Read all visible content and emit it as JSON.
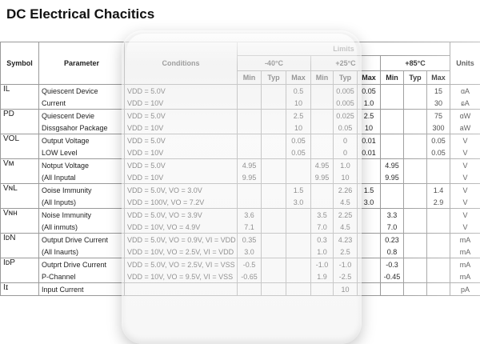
{
  "title": "DC Electrical Chacitics",
  "header": {
    "symbol": "Symbol",
    "parameter": "Parameter",
    "conditions": "Conditions",
    "limits": "Limits",
    "units": "Units",
    "temps": [
      "-40°C",
      "+25°C",
      "+85°C"
    ],
    "min": "Min",
    "typ": "Typ",
    "max": "Max"
  },
  "rows": [
    {
      "symbol": "IL",
      "lines": [
        {
          "param": "Quiescent Device",
          "cond": "VDD = 5.0V",
          "v": [
            "",
            "",
            "0.5",
            "",
            "0.005",
            "0.05",
            "",
            "",
            "15"
          ],
          "unit": "ɑA"
        },
        {
          "param": "Current",
          "cond": "VDD = 10V",
          "v": [
            "",
            "",
            "10",
            "",
            "0.005",
            "1.0",
            "",
            "",
            "30"
          ],
          "unit": "ɕA"
        }
      ]
    },
    {
      "symbol": "PD",
      "lines": [
        {
          "param": "Quiescent Devie",
          "cond": "VDD = 5.0V",
          "v": [
            "",
            "",
            "2.5",
            "",
            "0.025",
            "2.5",
            "",
            "",
            "75"
          ],
          "unit": "ɑW"
        },
        {
          "param": "Dissgsahor Package",
          "cond": "VDD = 10V",
          "v": [
            "",
            "",
            "10",
            "",
            "0.05",
            "10",
            "",
            "",
            "300"
          ],
          "unit": "aW"
        }
      ]
    },
    {
      "symbol": "VOL",
      "lines": [
        {
          "param": "Output Voltage",
          "cond": "VDD = 5.0V",
          "v": [
            "",
            "",
            "0.05",
            "",
            "0",
            "0.01",
            "",
            "",
            "0.05"
          ],
          "unit": "V"
        },
        {
          "param": "LOW Level",
          "cond": "VDD = 10V",
          "v": [
            "",
            "",
            "0.05",
            "",
            "0",
            "0.01",
            "",
            "",
            "0.05"
          ],
          "unit": "V"
        }
      ]
    },
    {
      "symbol": "Vᴍ",
      "lines": [
        {
          "param": "Notput Voltage",
          "cond": "VDD = 5.0V",
          "v": [
            "4.95",
            "",
            "",
            "4.95",
            "1.0",
            "",
            "4.95",
            "",
            ""
          ],
          "unit": "V"
        },
        {
          "param": "(All Inputal",
          "cond": "VDD = 10V",
          "v": [
            "9.95",
            "",
            "",
            "9.95",
            "10",
            "",
            "9.95",
            "",
            ""
          ],
          "unit": "V"
        }
      ]
    },
    {
      "symbol": "VɴL",
      "lines": [
        {
          "param": "Ooise Immunity",
          "cond": "VDD = 5.0V, VO = 3.0V",
          "v": [
            "",
            "",
            "1.5",
            "",
            "2.26",
            "1.5",
            "",
            "",
            "1.4"
          ],
          "unit": "V"
        },
        {
          "param": "(All Inputs)",
          "cond": "VDD = 100V, VO = 7.2V",
          "v": [
            "",
            "",
            "3.0",
            "",
            "4.5",
            "3.0",
            "",
            "",
            "2.9"
          ],
          "unit": "V"
        }
      ]
    },
    {
      "symbol": "Vɴн",
      "lines": [
        {
          "param": "Noise Immunity",
          "cond": "VDD = 5.0V, VO = 3.9V",
          "v": [
            "3.6",
            "",
            "",
            "3.5",
            "2.25",
            "",
            "3.3",
            "",
            ""
          ],
          "unit": "V"
        },
        {
          "param": "(All inmuts)",
          "cond": "VDD = 10V, VO = 4.9V",
          "v": [
            "7.1",
            "",
            "",
            "7.0",
            "4.5",
            "",
            "7.0",
            "",
            ""
          ],
          "unit": "V"
        }
      ]
    },
    {
      "symbol": "IᴅN",
      "lines": [
        {
          "param": "Output Drive Current",
          "cond": "VDD = 5.0V, VO = 0.9V, VI = VDD",
          "v": [
            "0.35",
            "",
            "",
            "0.3",
            "4.23",
            "",
            "0.23",
            "",
            ""
          ],
          "unit": "mA"
        },
        {
          "param": "(All Inaurts)",
          "cond": "VDD = 10V, VO = 2.5V, VI = VDD",
          "v": [
            "3.0",
            "",
            "",
            "1.0",
            "2.5",
            "",
            "0.8",
            "",
            ""
          ],
          "unit": "mA"
        }
      ]
    },
    {
      "symbol": "IᴅP",
      "lines": [
        {
          "param": "Outprt Drive Current",
          "cond": "VDD = 5.0V, VO = 2.5V, VI = VSS",
          "v": [
            "-0.5",
            "",
            "",
            "-1.0",
            "-1.0",
            "",
            "-0.3",
            "",
            ""
          ],
          "unit": "mA"
        },
        {
          "param": "P-Channel",
          "cond": "VDD = 10V, VO = 9.5V, VI = VSS",
          "v": [
            "-0.65",
            "",
            "",
            "1.9",
            "-2.5",
            "",
            "-0.45",
            "",
            ""
          ],
          "unit": "mA"
        }
      ]
    },
    {
      "symbol": "Iɪ",
      "lines": [
        {
          "param": "Input Current",
          "cond": "",
          "v": [
            "",
            "",
            "",
            "",
            "10",
            "",
            "",
            "",
            ""
          ],
          "unit": "pA"
        }
      ]
    }
  ]
}
